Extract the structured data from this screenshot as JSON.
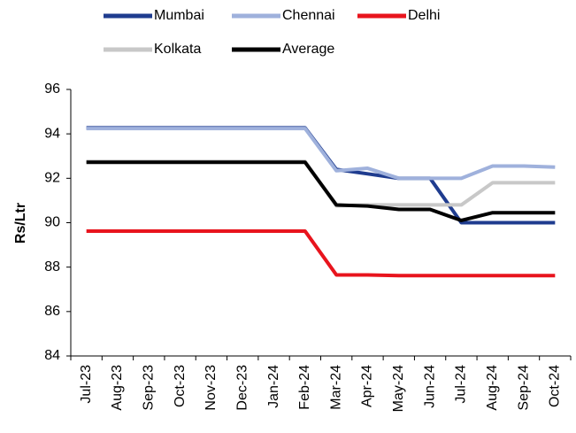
{
  "chart_data": {
    "type": "line",
    "y_label": "Rs/Ltr",
    "categories": [
      "Jul-23",
      "Aug-23",
      "Sep-23",
      "Oct-23",
      "Nov-23",
      "Dec-23",
      "Jan-24",
      "Feb-24",
      "Mar-24",
      "Apr-24",
      "May-24",
      "Jun-24",
      "Jul-24",
      "Aug-24",
      "Sep-24",
      "Oct-24"
    ],
    "series": [
      {
        "name": "Mumbai",
        "color": "#1f3c8f",
        "values": [
          94.27,
          94.27,
          94.27,
          94.27,
          94.27,
          94.27,
          94.27,
          94.27,
          92.4,
          92.2,
          92.0,
          92.0,
          90.0,
          90.0,
          90.0,
          90.0
        ]
      },
      {
        "name": "Chennai",
        "color": "#9fb1dc",
        "values": [
          94.24,
          94.24,
          94.24,
          94.24,
          94.24,
          94.24,
          94.24,
          94.24,
          92.34,
          92.45,
          92.0,
          92.0,
          92.0,
          92.55,
          92.55,
          92.5
        ]
      },
      {
        "name": "Delhi",
        "color": "#e8141d",
        "values": [
          89.62,
          89.62,
          89.62,
          89.62,
          89.62,
          89.62,
          89.62,
          89.62,
          87.65,
          87.65,
          87.62,
          87.62,
          87.62,
          87.62,
          87.62,
          87.62
        ]
      },
      {
        "name": "Kolkata",
        "color": "#c8c8c8",
        "values": [
          92.76,
          92.76,
          92.76,
          92.76,
          92.76,
          92.76,
          92.76,
          92.76,
          90.76,
          90.8,
          90.8,
          90.8,
          90.8,
          91.8,
          91.8,
          91.8
        ]
      },
      {
        "name": "Average",
        "color": "#000000",
        "values": [
          92.72,
          92.72,
          92.72,
          92.72,
          92.72,
          92.72,
          92.72,
          92.72,
          90.8,
          90.75,
          90.6,
          90.6,
          90.1,
          90.45,
          90.45,
          90.45
        ]
      }
    ],
    "ylim": [
      84,
      96
    ],
    "yticks": [
      84,
      86,
      88,
      90,
      92,
      94,
      96
    ]
  }
}
